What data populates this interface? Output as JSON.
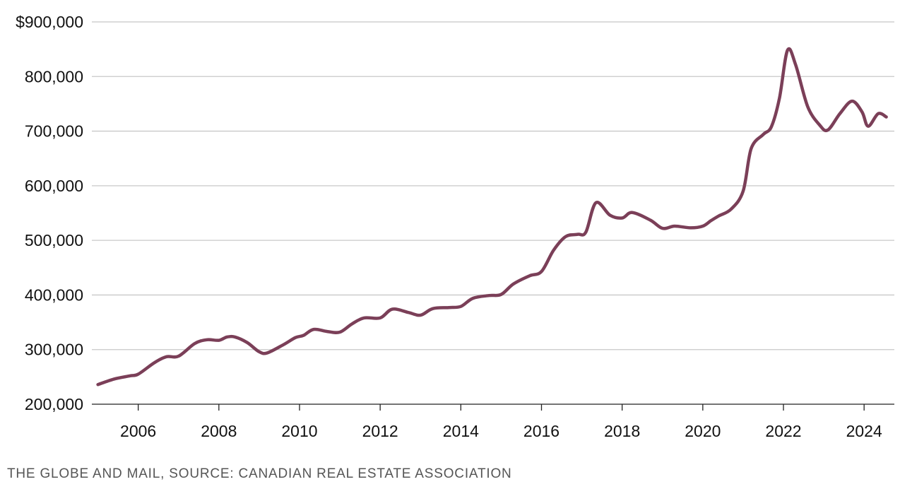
{
  "chart_data": {
    "type": "line",
    "title": "",
    "xlabel": "",
    "ylabel": "",
    "xlim": [
      2004.85,
      2024.75
    ],
    "ylim": [
      200000,
      900000
    ],
    "grid": true,
    "y_ticks": [
      200000,
      300000,
      400000,
      500000,
      600000,
      700000,
      800000,
      900000
    ],
    "y_tick_labels": [
      "200,000",
      "300,000",
      "400,000",
      "500,000",
      "600,000",
      "700,000",
      "800,000",
      "$900,000"
    ],
    "x_ticks": [
      2006,
      2008,
      2010,
      2012,
      2014,
      2016,
      2018,
      2020,
      2022,
      2024
    ],
    "x_tick_labels": [
      "2006",
      "2008",
      "2010",
      "2012",
      "2014",
      "2016",
      "2018",
      "2020",
      "2022",
      "2024"
    ],
    "series": [
      {
        "color": "#7b3f58",
        "x": [
          2005.0,
          2005.4,
          2005.8,
          2006.0,
          2006.4,
          2006.7,
          2007.0,
          2007.4,
          2007.7,
          2008.0,
          2008.2,
          2008.4,
          2008.7,
          2009.0,
          2009.2,
          2009.6,
          2009.9,
          2010.1,
          2010.35,
          2010.7,
          2011.0,
          2011.3,
          2011.6,
          2012.0,
          2012.3,
          2012.7,
          2013.0,
          2013.3,
          2013.7,
          2014.0,
          2014.3,
          2014.7,
          2015.0,
          2015.3,
          2015.7,
          2016.0,
          2016.3,
          2016.6,
          2016.9,
          2017.1,
          2017.35,
          2017.7,
          2018.0,
          2018.25,
          2018.7,
          2019.0,
          2019.3,
          2019.7,
          2020.0,
          2020.2,
          2020.4,
          2020.7,
          2021.0,
          2021.2,
          2021.5,
          2021.7,
          2021.9,
          2022.1,
          2022.3,
          2022.6,
          2022.9,
          2023.1,
          2023.4,
          2023.7,
          2023.95,
          2024.1,
          2024.35,
          2024.55
        ],
        "values": [
          236000,
          246000,
          252000,
          255000,
          276000,
          287000,
          288000,
          311000,
          318000,
          317000,
          323000,
          323000,
          313000,
          296000,
          294000,
          309000,
          322000,
          326000,
          337000,
          333000,
          332000,
          347000,
          358000,
          358000,
          374000,
          368000,
          363000,
          375000,
          377000,
          379000,
          394000,
          399000,
          401000,
          420000,
          435000,
          443000,
          482000,
          507000,
          511000,
          515000,
          569000,
          546000,
          541000,
          551000,
          537000,
          522000,
          526000,
          523000,
          526000,
          536000,
          545000,
          557000,
          590000,
          668000,
          694000,
          708000,
          760000,
          848000,
          822000,
          745000,
          711000,
          702000,
          732000,
          755000,
          735000,
          709000,
          732000,
          726000
        ]
      }
    ]
  },
  "footer": {
    "source": "THE GLOBE AND MAIL, SOURCE: CANADIAN REAL ESTATE ASSOCIATION"
  }
}
